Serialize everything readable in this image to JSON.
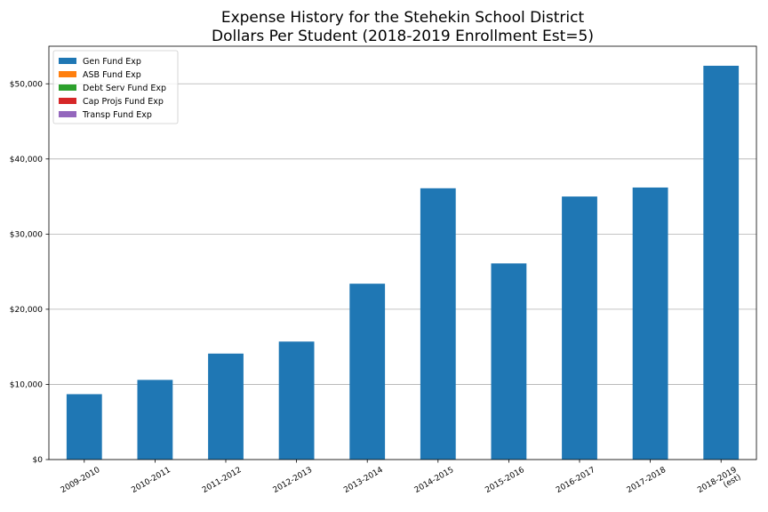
{
  "chart_data": {
    "type": "bar",
    "title_line1": "Expense History for the Stehekin School District",
    "title_line2": "Dollars Per Student (2018-2019 Enrollment Est=5)",
    "xlabel": "",
    "ylabel": "",
    "categories": [
      [
        "2009-2010"
      ],
      [
        "2010-2011"
      ],
      [
        "2011-2012"
      ],
      [
        "2012-2013"
      ],
      [
        "2013-2014"
      ],
      [
        "2014-2015"
      ],
      [
        "2015-2016"
      ],
      [
        "2016-2017"
      ],
      [
        "2017-2018"
      ],
      [
        "2018-2019",
        "(est)"
      ]
    ],
    "series": [
      {
        "name": "Gen Fund Exp",
        "color": "#1f77b4",
        "values": [
          8700,
          10600,
          14100,
          15700,
          23400,
          36100,
          26100,
          35000,
          36200,
          52400
        ]
      },
      {
        "name": "ASB Fund Exp",
        "color": "#ff7f0e",
        "values": [
          0,
          0,
          0,
          0,
          0,
          0,
          0,
          0,
          0,
          0
        ]
      },
      {
        "name": "Debt Serv Fund Exp",
        "color": "#2ca02c",
        "values": [
          0,
          0,
          0,
          0,
          0,
          0,
          0,
          0,
          0,
          0
        ]
      },
      {
        "name": "Cap Projs Fund Exp",
        "color": "#d62728",
        "values": [
          0,
          0,
          0,
          0,
          0,
          0,
          0,
          0,
          0,
          0
        ]
      },
      {
        "name": "Transp Fund Exp",
        "color": "#9467bd",
        "values": [
          0,
          0,
          0,
          0,
          0,
          0,
          0,
          0,
          0,
          0
        ]
      }
    ],
    "ylim": [
      0,
      55000
    ],
    "yticks": [
      {
        "value": 0,
        "label": "$0"
      },
      {
        "value": 10000,
        "label": "$10,000"
      },
      {
        "value": 20000,
        "label": "$20,000"
      },
      {
        "value": 30000,
        "label": "$30,000"
      },
      {
        "value": 40000,
        "label": "$40,000"
      },
      {
        "value": 50000,
        "label": "$50,000"
      }
    ],
    "grid": "horizontal",
    "legend_position": "top-left",
    "stacked": true
  }
}
